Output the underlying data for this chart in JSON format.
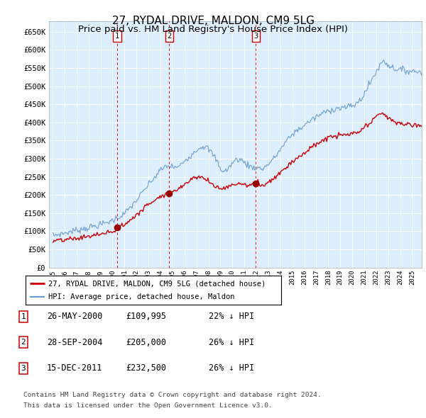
{
  "title": "27, RYDAL DRIVE, MALDON, CM9 5LG",
  "subtitle": "Price paid vs. HM Land Registry's House Price Index (HPI)",
  "ylim": [
    0,
    680000
  ],
  "ytick_vals": [
    0,
    50000,
    100000,
    150000,
    200000,
    250000,
    300000,
    350000,
    400000,
    450000,
    500000,
    550000,
    600000,
    650000
  ],
  "ytick_labels": [
    "£0",
    "£50K",
    "£100K",
    "£150K",
    "£200K",
    "£250K",
    "£300K",
    "£350K",
    "£400K",
    "£450K",
    "£500K",
    "£550K",
    "£600K",
    "£650K"
  ],
  "xlim_min": 1994.7,
  "xlim_max": 2025.8,
  "sale_date_nums": [
    2000.4,
    2004.74,
    2011.96
  ],
  "sale_prices": [
    109995,
    205000,
    232500
  ],
  "sale_labels": [
    "1",
    "2",
    "3"
  ],
  "hpi_color": "#6699cc",
  "red_color": "#cc0000",
  "plot_bg": "#ddeeff",
  "grid_color": "#ffffff",
  "legend_label_red": "27, RYDAL DRIVE, MALDON, CM9 5LG (detached house)",
  "legend_label_blue": "HPI: Average price, detached house, Maldon",
  "table_rows": [
    {
      "num": "1",
      "date": "26-MAY-2000",
      "price": "£109,995",
      "pct": "22% ↓ HPI"
    },
    {
      "num": "2",
      "date": "28-SEP-2004",
      "price": "£205,000",
      "pct": "26% ↓ HPI"
    },
    {
      "num": "3",
      "date": "15-DEC-2011",
      "price": "£232,500",
      "pct": "26% ↓ HPI"
    }
  ],
  "footnote_line1": "Contains HM Land Registry data © Crown copyright and database right 2024.",
  "footnote_line2": "This data is licensed under the Open Government Licence v3.0.",
  "title_fontsize": 11,
  "subtitle_fontsize": 9.5
}
